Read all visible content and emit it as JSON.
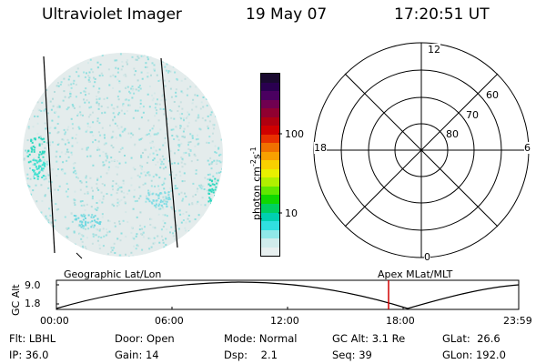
{
  "header": {
    "title": "Ultraviolet Imager",
    "date": "19 May 07",
    "time": "17:20:51 UT"
  },
  "colorbar": {
    "label": "photon cm",
    "sup1": "-2",
    "mid": "s",
    "sup2": "-1",
    "ticks": [
      "100",
      "10"
    ],
    "colors": [
      "#1a0a30",
      "#2a0050",
      "#4a0060",
      "#700050",
      "#900030",
      "#b00010",
      "#d00000",
      "#e83000",
      "#f07000",
      "#f8a000",
      "#f8d000",
      "#e8f000",
      "#b0f000",
      "#60e800",
      "#10d800",
      "#00d060",
      "#00d0b0",
      "#30e0e0",
      "#90e8e8",
      "#d0ecec",
      "#e8f0f0"
    ]
  },
  "polar": {
    "labels": {
      "top": "12",
      "bottom": "0",
      "left": "18",
      "right": "6"
    },
    "rings": [
      "80",
      "70",
      "60"
    ]
  },
  "orbit": {
    "left_title": "Geographic Lat/Lon",
    "right_title": "Apex MLat/MLT",
    "ylabel": "GC Alt",
    "yticks": [
      "9.0",
      "1.8"
    ],
    "xticks": [
      "00:00",
      "06:00",
      "12:00",
      "18:00",
      "23:59"
    ]
  },
  "info": {
    "row1": [
      {
        "label": "Flt:",
        "value": "LBHL"
      },
      {
        "label": "Door:",
        "value": "Open"
      },
      {
        "label": "Mode:",
        "value": "Normal"
      },
      {
        "label": "GC Alt:",
        "value": "3.1 Re"
      },
      {
        "label": "GLat:",
        "value": "26.6"
      }
    ],
    "row2": [
      {
        "label": "IP:",
        "value": "36.0"
      },
      {
        "label": "Gain:",
        "value": "14"
      },
      {
        "label": "Dsp:",
        "value": "2.1"
      },
      {
        "label": "Seq:",
        "value": "39"
      },
      {
        "label": "GLon:",
        "value": "192.0"
      }
    ]
  }
}
